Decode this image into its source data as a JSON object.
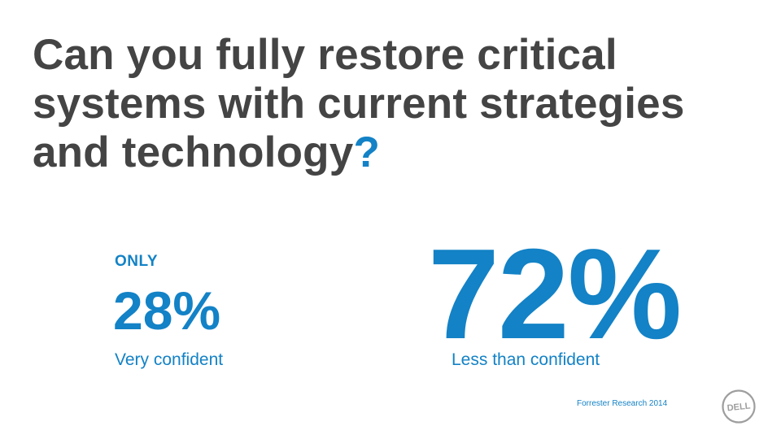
{
  "slide": {
    "title_text": "Can you fully restore critical systems with current strategies and technology",
    "title_qmark": "?",
    "left_stat": {
      "prefix": "ONLY",
      "value": "28%",
      "label": "Very confident"
    },
    "right_stat": {
      "value": "72%",
      "label": "Less than confident"
    },
    "source": "Forrester Research 2014",
    "logo": {
      "icon": "dell-logo-icon",
      "text": "DELL"
    }
  },
  "colors": {
    "accent": "#1382c6",
    "title": "#444444",
    "logo": "#9e9e9e",
    "background": "#ffffff"
  }
}
